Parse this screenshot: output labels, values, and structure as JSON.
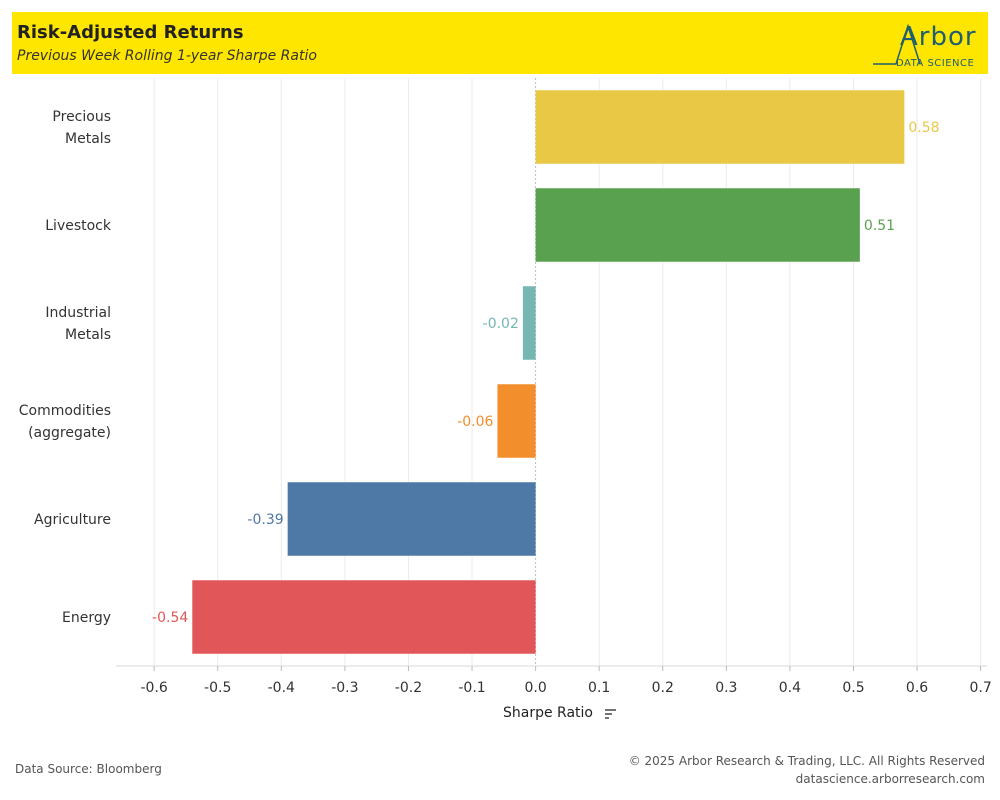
{
  "header": {
    "title": "Risk-Adjusted Returns",
    "subtitle": "Previous Week Rolling 1-year Sharpe Ratio",
    "logo_main": "Arbor",
    "logo_sub": "DATA SCIENCE",
    "background": "#ffe600"
  },
  "chart_data": {
    "type": "bar",
    "orientation": "horizontal",
    "categories": [
      [
        "Precious",
        "Metals"
      ],
      [
        "Livestock"
      ],
      [
        "Industrial",
        "Metals"
      ],
      [
        "Commodities",
        "(aggregate)"
      ],
      [
        "Agriculture"
      ],
      [
        "Energy"
      ]
    ],
    "values": [
      0.58,
      0.51,
      -0.02,
      -0.06,
      -0.39,
      -0.54
    ],
    "value_labels": [
      "0.58",
      "0.51",
      "-0.02",
      "-0.06",
      "-0.39",
      "-0.54"
    ],
    "colors": [
      "#e9c846",
      "#59a14f",
      "#76b7b2",
      "#f28e2b",
      "#4e79a7",
      "#e15759"
    ],
    "xlabel": "Sharpe Ratio",
    "xlim": [
      -0.66,
      0.71
    ],
    "ticks": [
      -0.6,
      -0.5,
      -0.4,
      -0.3,
      -0.2,
      -0.1,
      0.0,
      0.1,
      0.2,
      0.3,
      0.4,
      0.5,
      0.6,
      0.7
    ],
    "tick_labels": [
      "-0.6",
      "-0.5",
      "-0.4",
      "-0.3",
      "-0.2",
      "-0.1",
      "0.0",
      "0.1",
      "0.2",
      "0.3",
      "0.4",
      "0.5",
      "0.6",
      "0.7"
    ],
    "grid": true
  },
  "footer": {
    "source": "Data Source: Bloomberg",
    "copyright": "© 2025 Arbor Research & Trading, LLC. All Rights Reserved",
    "website": "datascience.arborresearch.com"
  }
}
